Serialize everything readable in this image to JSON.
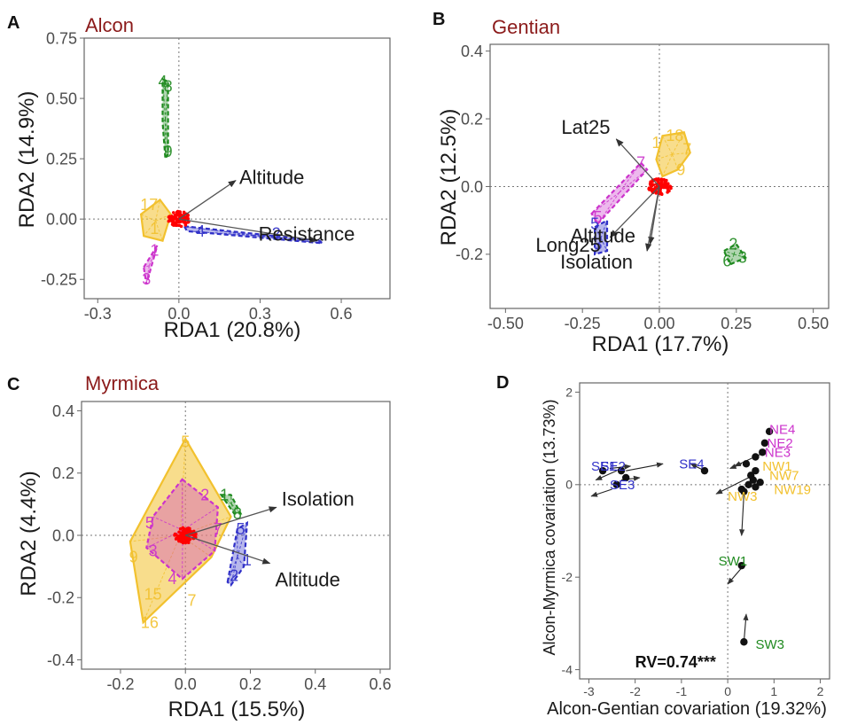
{
  "colors": {
    "red": "#ff0000",
    "yellow": "#f2c12e",
    "blue": "#3030c8",
    "green": "#1f8a1f",
    "magenta": "#cc33cc",
    "title": "#8b1a1a"
  },
  "chart_data": [
    {
      "panel": "A",
      "title": "Alcon",
      "type": "scatter",
      "xlabel": "RDA1 (20.8%)",
      "ylabel": "RDA2 (14.9%)",
      "xlim": [
        -0.35,
        0.78
      ],
      "ylim": [
        -0.33,
        0.75
      ],
      "xticks": [
        -0.3,
        0.0,
        0.3,
        0.6
      ],
      "yticks": [
        -0.25,
        0.0,
        0.25,
        0.5,
        0.75
      ],
      "xtick_labels": [
        "-0.3",
        "0.0",
        "0.3",
        "0.6"
      ],
      "ytick_labels": [
        "-0.25",
        "0.00",
        "0.25",
        "0.50",
        "0.75"
      ],
      "vectors": [
        {
          "label": "Altitude",
          "x": 0.21,
          "y": 0.16
        },
        {
          "label": "Resistance",
          "x": 0.51,
          "y": -0.09
        }
      ],
      "centroid": {
        "x": 0.0,
        "y": 0.0
      },
      "groups": [
        {
          "color": "yellow",
          "hull": [
            [
              -0.14,
              0.02
            ],
            [
              -0.07,
              0.08
            ],
            [
              -0.03,
              0.02
            ],
            [
              -0.06,
              -0.09
            ],
            [
              -0.13,
              -0.07
            ]
          ],
          "labels": [
            {
              "t": "17",
              "x": -0.11,
              "y": 0.06
            },
            {
              "t": "1",
              "x": -0.09,
              "y": -0.04
            }
          ]
        },
        {
          "color": "magenta",
          "hull": [
            [
              -0.13,
              -0.2
            ],
            [
              -0.08,
              -0.11
            ],
            [
              -0.12,
              -0.27
            ]
          ],
          "labels": [
            {
              "t": "1",
              "x": -0.09,
              "y": -0.13
            },
            {
              "t": "3",
              "x": -0.12,
              "y": -0.25
            }
          ]
        },
        {
          "color": "green",
          "hull": [
            [
              -0.06,
              0.58
            ],
            [
              -0.04,
              0.57
            ],
            [
              -0.04,
              0.27
            ],
            [
              -0.05,
              0.25
            ],
            [
              -0.06,
              0.4
            ]
          ],
          "labels": [
            {
              "t": "4",
              "x": -0.06,
              "y": 0.57
            },
            {
              "t": "8",
              "x": -0.04,
              "y": 0.55
            },
            {
              "t": "9",
              "x": -0.04,
              "y": 0.28
            }
          ]
        },
        {
          "color": "blue",
          "hull": [
            [
              0.02,
              -0.03
            ],
            [
              0.52,
              -0.09
            ],
            [
              0.53,
              -0.1
            ],
            [
              0.03,
              -0.05
            ]
          ],
          "labels": [
            {
              "t": "4",
              "x": 0.08,
              "y": -0.05
            },
            {
              "t": "2",
              "x": 0.36,
              "y": -0.06
            }
          ]
        }
      ]
    },
    {
      "panel": "B",
      "title": "Gentian",
      "type": "scatter",
      "xlabel": "RDA1 (17.7%)",
      "ylabel": "RDA2 (12.5%)",
      "xlim": [
        -0.55,
        0.55
      ],
      "ylim": [
        -0.36,
        0.42
      ],
      "xticks": [
        -0.5,
        -0.25,
        0.0,
        0.25,
        0.5
      ],
      "yticks": [
        -0.2,
        0.0,
        0.2,
        0.4
      ],
      "xtick_labels": [
        "-0.50",
        "-0.25",
        "0.00",
        "0.25",
        "0.50"
      ],
      "ytick_labels": [
        "-0.2",
        "0.0",
        "0.2",
        "0.4"
      ],
      "vectors": [
        {
          "label": "Lat25",
          "x": -0.14,
          "y": 0.14
        },
        {
          "label": "Long25",
          "x": -0.16,
          "y": -0.15
        },
        {
          "label": "Altitude",
          "x": -0.03,
          "y": -0.17
        },
        {
          "label": "Isolation",
          "x": -0.04,
          "y": -0.19
        }
      ],
      "centroid": {
        "x": 0.0,
        "y": 0.0
      },
      "groups": [
        {
          "color": "yellow",
          "hull": [
            [
              -0.01,
              0.08
            ],
            [
              0.01,
              0.15
            ],
            [
              0.08,
              0.16
            ],
            [
              0.1,
              0.1
            ],
            [
              0.06,
              0.05
            ],
            [
              0.01,
              0.03
            ]
          ],
          "labels": [
            {
              "t": "18",
              "x": 0.05,
              "y": 0.15
            },
            {
              "t": "1",
              "x": -0.01,
              "y": 0.13
            },
            {
              "t": "7",
              "x": 0.09,
              "y": 0.11
            },
            {
              "t": "9",
              "x": 0.07,
              "y": 0.05
            }
          ]
        },
        {
          "color": "magenta",
          "hull": [
            [
              -0.22,
              -0.08
            ],
            [
              -0.06,
              0.07
            ],
            [
              -0.04,
              0.05
            ],
            [
              -0.2,
              -0.11
            ]
          ],
          "labels": [
            {
              "t": "7",
              "x": -0.06,
              "y": 0.07
            },
            {
              "t": "5",
              "x": -0.2,
              "y": -0.09
            }
          ]
        },
        {
          "color": "blue",
          "hull": [
            [
              -0.21,
              -0.12
            ],
            [
              -0.17,
              -0.1
            ],
            [
              -0.17,
              -0.19
            ],
            [
              -0.21,
              -0.2
            ]
          ],
          "labels": [
            {
              "t": "5",
              "x": -0.21,
              "y": -0.11
            },
            {
              "t": "3",
              "x": -0.2,
              "y": -0.17
            }
          ]
        },
        {
          "color": "green",
          "hull": [
            [
              0.21,
              -0.19
            ],
            [
              0.25,
              -0.17
            ],
            [
              0.28,
              -0.21
            ],
            [
              0.23,
              -0.23
            ]
          ],
          "labels": [
            {
              "t": "2",
              "x": 0.24,
              "y": -0.17
            },
            {
              "t": "6",
              "x": 0.22,
              "y": -0.22
            },
            {
              "t": "3",
              "x": 0.27,
              "y": -0.21
            }
          ]
        }
      ]
    },
    {
      "panel": "C",
      "title": "Myrmica",
      "type": "scatter",
      "xlabel": "RDA1 (15.5%)",
      "ylabel": "RDA2 (4.4%)",
      "xlim": [
        -0.32,
        0.63
      ],
      "ylim": [
        -0.43,
        0.43
      ],
      "xticks": [
        -0.2,
        0.0,
        0.2,
        0.4,
        0.6
      ],
      "yticks": [
        -0.4,
        -0.2,
        0.0,
        0.2,
        0.4
      ],
      "xtick_labels": [
        "-0.2",
        "0.0",
        "0.2",
        "0.4",
        "0.6"
      ],
      "ytick_labels": [
        "-0.4",
        "-0.2",
        "0.0",
        "0.2",
        "0.4"
      ],
      "vectors": [
        {
          "label": "Isolation",
          "x": 0.28,
          "y": 0.09
        },
        {
          "label": "Altitude",
          "x": 0.26,
          "y": -0.09
        }
      ],
      "centroid": {
        "x": 0.0,
        "y": 0.0
      },
      "groups": [
        {
          "color": "yellow",
          "hull": [
            [
              0.0,
              0.31
            ],
            [
              0.14,
              0.06
            ],
            [
              0.08,
              -0.07
            ],
            [
              -0.13,
              -0.28
            ],
            [
              -0.17,
              -0.02
            ]
          ],
          "labels": [
            {
              "t": "5",
              "x": 0.0,
              "y": 0.3
            },
            {
              "t": "9",
              "x": -0.16,
              "y": -0.07
            },
            {
              "t": "15",
              "x": -0.1,
              "y": -0.19
            },
            {
              "t": "16",
              "x": -0.11,
              "y": -0.28
            },
            {
              "t": "7",
              "x": 0.02,
              "y": -0.21
            }
          ]
        },
        {
          "color": "magenta",
          "hull": [
            [
              -0.01,
              0.18
            ],
            [
              0.1,
              0.09
            ],
            [
              0.09,
              -0.05
            ],
            [
              -0.01,
              -0.14
            ],
            [
              -0.12,
              -0.04
            ],
            [
              -0.1,
              0.06
            ]
          ],
          "labels": [
            {
              "t": "2",
              "x": 0.06,
              "y": 0.13
            },
            {
              "t": "5",
              "x": -0.11,
              "y": 0.04
            },
            {
              "t": "7",
              "x": 0.1,
              "y": 0.02
            },
            {
              "t": "3",
              "x": -0.1,
              "y": -0.05
            },
            {
              "t": "4",
              "x": -0.04,
              "y": -0.14
            }
          ]
        },
        {
          "color": "green",
          "hull": [
            [
              0.11,
              0.13
            ],
            [
              0.14,
              0.13
            ],
            [
              0.17,
              0.07
            ],
            [
              0.15,
              0.07
            ]
          ],
          "labels": [
            {
              "t": "1",
              "x": 0.12,
              "y": 0.13
            },
            {
              "t": "8",
              "x": 0.16,
              "y": 0.07
            }
          ]
        },
        {
          "color": "blue",
          "hull": [
            [
              0.13,
              -0.15
            ],
            [
              0.16,
              0.02
            ],
            [
              0.19,
              0.04
            ],
            [
              0.18,
              -0.1
            ],
            [
              0.14,
              -0.16
            ]
          ],
          "labels": [
            {
              "t": "5",
              "x": 0.17,
              "y": 0.02
            },
            {
              "t": "2",
              "x": 0.15,
              "y": -0.13
            },
            {
              "t": "1",
              "x": 0.19,
              "y": -0.08
            }
          ]
        }
      ]
    },
    {
      "panel": "D",
      "type": "scatter",
      "xlabel": "Alcon-Gentian covariation (19.32%)",
      "ylabel": "Alcon-Myrmica covariation (13.73%)",
      "xlim": [
        -3.2,
        2.2
      ],
      "ylim": [
        -4.2,
        2.2
      ],
      "xticks": [
        -3,
        -2,
        -1,
        0,
        1,
        2
      ],
      "yticks": [
        -4,
        -2,
        0,
        2
      ],
      "xtick_labels": [
        "-3",
        "-2",
        "-1",
        "0",
        "1",
        "2"
      ],
      "ytick_labels": [
        "-4",
        "-2",
        "0",
        "2"
      ],
      "annotation": "RV=0.74***",
      "sites": [
        {
          "label": "NE4",
          "color": "magenta",
          "x": 0.9,
          "y": 1.1
        },
        {
          "label": "NE2",
          "color": "magenta",
          "x": 0.85,
          "y": 0.8
        },
        {
          "label": "NE3",
          "color": "magenta",
          "x": 0.8,
          "y": 0.6
        },
        {
          "label": "SE2",
          "color": "blue",
          "x": -2.75,
          "y": 0.3
        },
        {
          "label": "SE1",
          "color": "blue",
          "x": -2.95,
          "y": 0.3
        },
        {
          "label": "SE4",
          "color": "blue",
          "x": -1.05,
          "y": 0.35
        },
        {
          "label": "SE3",
          "color": "blue",
          "x": -2.55,
          "y": -0.1
        },
        {
          "label": "NW1",
          "color": "yellow",
          "x": 0.75,
          "y": 0.3
        },
        {
          "label": "NW7",
          "color": "yellow",
          "x": 0.9,
          "y": 0.1
        },
        {
          "label": "NW3",
          "color": "yellow",
          "x": 0.0,
          "y": -0.35
        },
        {
          "label": "NW19",
          "color": "yellow",
          "x": 1.0,
          "y": -0.2
        },
        {
          "label": "SW1",
          "color": "green",
          "x": -0.2,
          "y": -1.75
        },
        {
          "label": "SW3",
          "color": "green",
          "x": 0.6,
          "y": -3.55
        }
      ],
      "segments": [
        [
          [
            -2.55,
            0.35
          ],
          [
            -2.1,
            0.4
          ]
        ],
        [
          [
            -2.2,
            0.3
          ],
          [
            -1.4,
            0.45
          ]
        ],
        [
          [
            -2.4,
            0.3
          ],
          [
            -2.85,
            0.1
          ]
        ],
        [
          [
            -2.3,
            0.1
          ],
          [
            -1.9,
            0.15
          ]
        ],
        [
          [
            -2.5,
            -0.1
          ],
          [
            -2.95,
            -0.25
          ]
        ],
        [
          [
            -0.5,
            0.3
          ],
          [
            -0.8,
            0.45
          ]
        ],
        [
          [
            0.3,
            0.45
          ],
          [
            0.05,
            0.35
          ]
        ],
        [
          [
            0.8,
            0.7
          ],
          [
            0.15,
            0.4
          ]
        ],
        [
          [
            0.55,
            0.2
          ],
          [
            -0.25,
            -0.2
          ]
        ],
        [
          [
            0.35,
            -0.2
          ],
          [
            0.3,
            -1.1
          ]
        ],
        [
          [
            0.3,
            -1.8
          ],
          [
            0.0,
            -2.15
          ]
        ],
        [
          [
            0.35,
            -3.4
          ],
          [
            0.4,
            -2.8
          ]
        ]
      ],
      "points": [
        [
          0.9,
          1.15
        ],
        [
          0.8,
          0.9
        ],
        [
          0.75,
          0.7
        ],
        [
          0.6,
          0.6
        ],
        [
          0.6,
          0.3
        ],
        [
          0.4,
          0.45
        ],
        [
          0.5,
          0.2
        ],
        [
          0.45,
          0.0
        ],
        [
          0.3,
          -0.1
        ],
        [
          0.35,
          -0.15
        ],
        [
          0.6,
          -0.05
        ],
        [
          0.55,
          0.1
        ],
        [
          0.7,
          0.05
        ],
        [
          -2.7,
          0.3
        ],
        [
          -2.3,
          0.3
        ],
        [
          -2.2,
          0.15
        ],
        [
          -2.4,
          0.0
        ],
        [
          -0.5,
          0.3
        ],
        [
          0.3,
          -1.75
        ],
        [
          0.35,
          -3.4
        ]
      ]
    }
  ]
}
